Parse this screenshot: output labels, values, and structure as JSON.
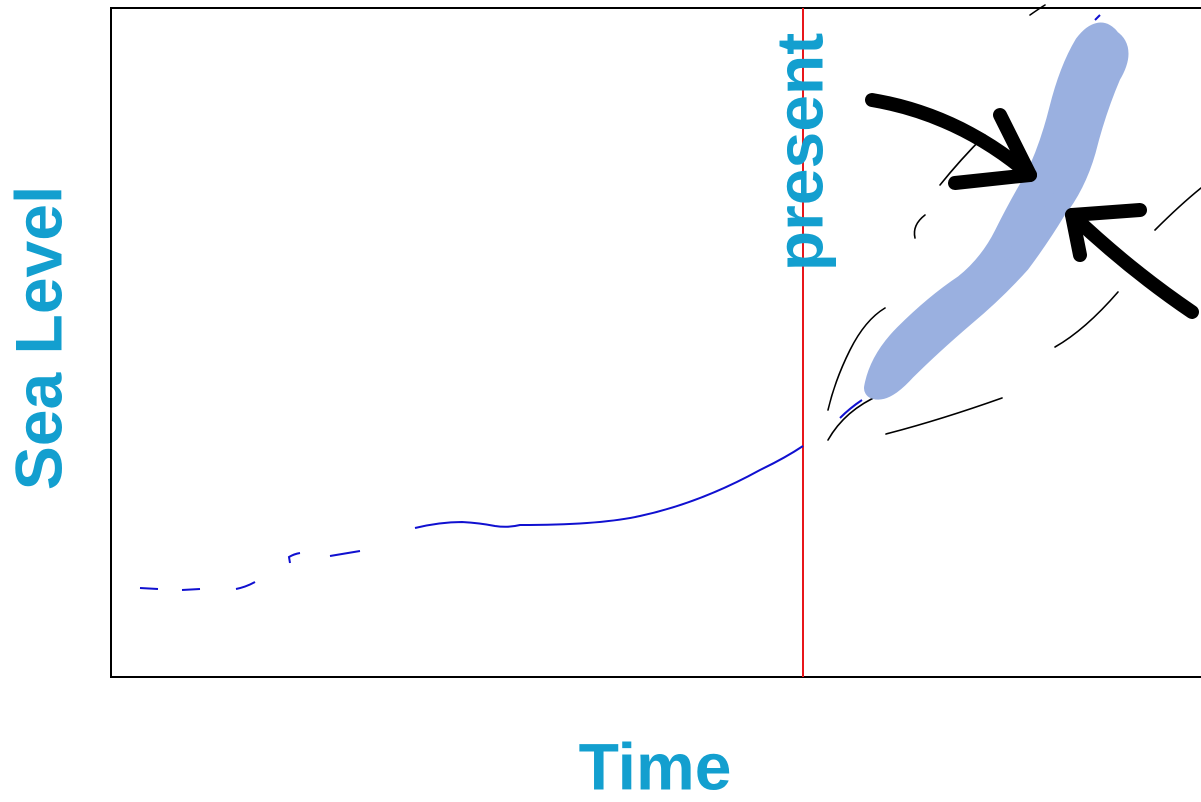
{
  "x_axis_label": "Time",
  "y_axis_label": "Sea Level",
  "annotation": "present"
}
